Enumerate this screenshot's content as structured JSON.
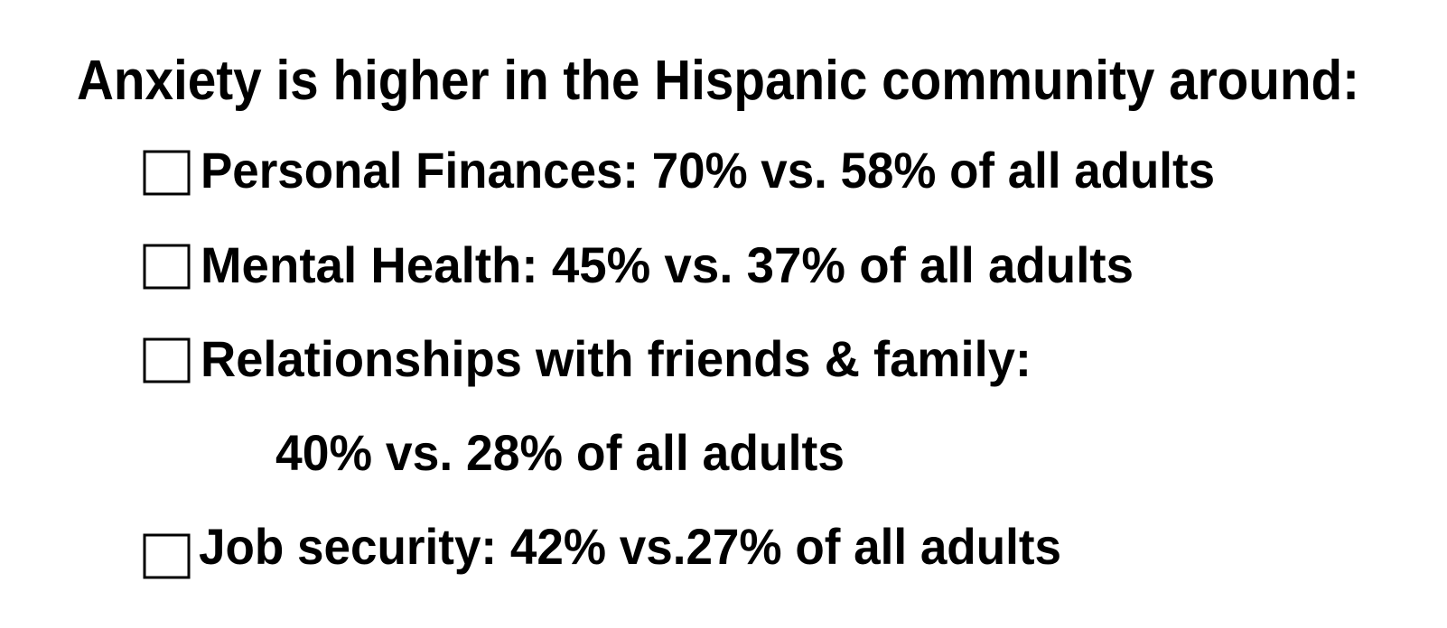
{
  "title": "Anxiety is higher in the Hispanic community around:",
  "items": [
    {
      "text": "Personal Finances: 70% vs. 58% of all adults"
    },
    {
      "text": "Mental Health: 45% vs. 37% of all adults"
    },
    {
      "text": "Relationships with friends & family:",
      "continuation": "40% vs. 28% of all adults"
    },
    {
      "text": "Job security: 42% vs.27% of all adults"
    }
  ]
}
